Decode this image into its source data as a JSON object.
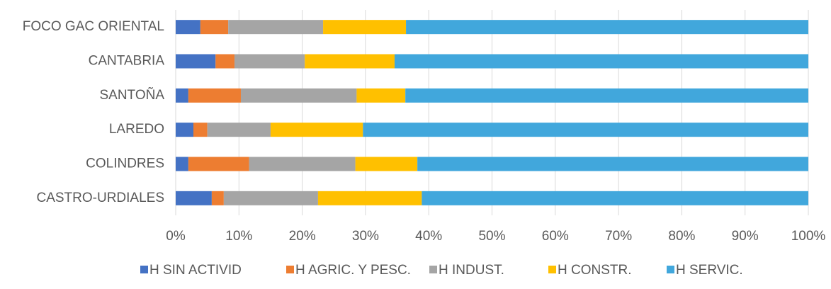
{
  "chart_data": {
    "type": "stacked_barh",
    "categories": [
      "FOCO GAC ORIENTAL",
      "CANTABRIA",
      "SANTOÑA",
      "LAREDO",
      "COLINDRES",
      "CASTRO-URDIALES"
    ],
    "series": [
      {
        "name": "H SIN ACTIVID",
        "color": "#4472c4",
        "values": [
          3.9,
          6.3,
          2.0,
          2.8,
          2.0,
          5.7
        ]
      },
      {
        "name": "H AGRIC. Y PESC.",
        "color": "#ed7d31",
        "values": [
          4.4,
          3.0,
          8.3,
          2.2,
          9.6,
          1.9
        ]
      },
      {
        "name": "H INDUST.",
        "color": "#a5a5a5",
        "values": [
          15.0,
          11.1,
          18.3,
          10.0,
          16.8,
          14.9
        ]
      },
      {
        "name": "H CONSTR.",
        "color": "#ffc000",
        "values": [
          13.1,
          14.2,
          7.7,
          14.6,
          9.8,
          16.4
        ]
      },
      {
        "name": "H SERVIC.",
        "color": "#41a7dc",
        "values": [
          63.6,
          65.4,
          63.7,
          70.4,
          61.8,
          61.1
        ]
      }
    ],
    "xlim": [
      0,
      100
    ],
    "xticks": [
      {
        "value": 0,
        "label": "0%"
      },
      {
        "value": 10,
        "label": "10%"
      },
      {
        "value": 20,
        "label": "20%"
      },
      {
        "value": 30,
        "label": "30%"
      },
      {
        "value": 40,
        "label": "40%"
      },
      {
        "value": 50,
        "label": "50%"
      },
      {
        "value": 60,
        "label": "60%"
      },
      {
        "value": 70,
        "label": "70%"
      },
      {
        "value": 80,
        "label": "80%"
      },
      {
        "value": 90,
        "label": "90%"
      },
      {
        "value": 100,
        "label": "100%"
      }
    ],
    "grid": true
  }
}
